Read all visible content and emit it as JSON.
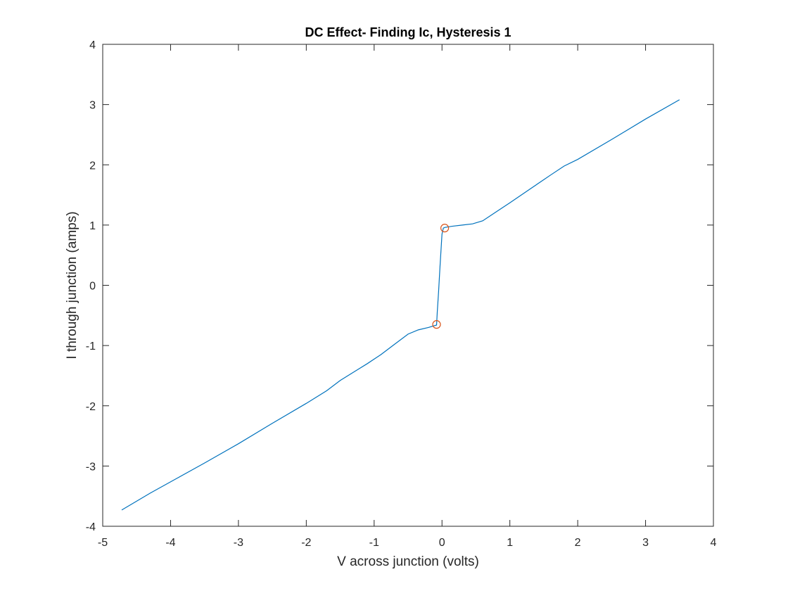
{
  "chart_data": {
    "type": "line",
    "title": "DC Effect- Finding Ic, Hysteresis 1",
    "xlabel": "V across junction (volts)",
    "ylabel": "I through junction (amps)",
    "xlim": [
      -5,
      4
    ],
    "ylim": [
      -4,
      4
    ],
    "xticks": [
      -5,
      -4,
      -3,
      -2,
      -1,
      0,
      1,
      2,
      3,
      4
    ],
    "yticks": [
      -4,
      -3,
      -2,
      -1,
      0,
      1,
      2,
      3,
      4
    ],
    "xtick_labels": [
      "-5",
      "-4",
      "-3",
      "-2",
      "-1",
      "0",
      "1",
      "2",
      "3",
      "4"
    ],
    "ytick_labels": [
      "-4",
      "-3",
      "-2",
      "-1",
      "0",
      "1",
      "2",
      "3",
      "4"
    ],
    "grid": false,
    "legend": "none",
    "series": [
      {
        "color": "#0072BD",
        "x": [
          -4.72,
          -4.3,
          -3.9,
          -3.5,
          -3.0,
          -2.5,
          -2.0,
          -1.7,
          -1.5,
          -1.3,
          -1.1,
          -0.9,
          -0.7,
          -0.5,
          -0.35,
          -0.2,
          -0.08,
          -0.07,
          -0.05,
          -0.03,
          0.0,
          0.02,
          0.04,
          0.15,
          0.3,
          0.45,
          0.6,
          0.8,
          1.0,
          1.3,
          1.6,
          1.8,
          2.0,
          2.5,
          3.0,
          3.5
        ],
        "y": [
          -3.73,
          -3.45,
          -3.2,
          -2.95,
          -2.63,
          -2.29,
          -1.96,
          -1.75,
          -1.58,
          -1.44,
          -1.3,
          -1.15,
          -0.98,
          -0.81,
          -0.74,
          -0.7,
          -0.66,
          -0.45,
          -0.1,
          0.3,
          0.85,
          0.95,
          0.96,
          0.98,
          1.0,
          1.02,
          1.07,
          1.22,
          1.37,
          1.6,
          1.83,
          1.98,
          2.09,
          2.42,
          2.76,
          3.08
        ]
      },
      {
        "color": "#D95319",
        "marker": "circle",
        "x": [
          -0.08,
          0.04
        ],
        "y": [
          -0.65,
          0.95
        ]
      }
    ]
  }
}
